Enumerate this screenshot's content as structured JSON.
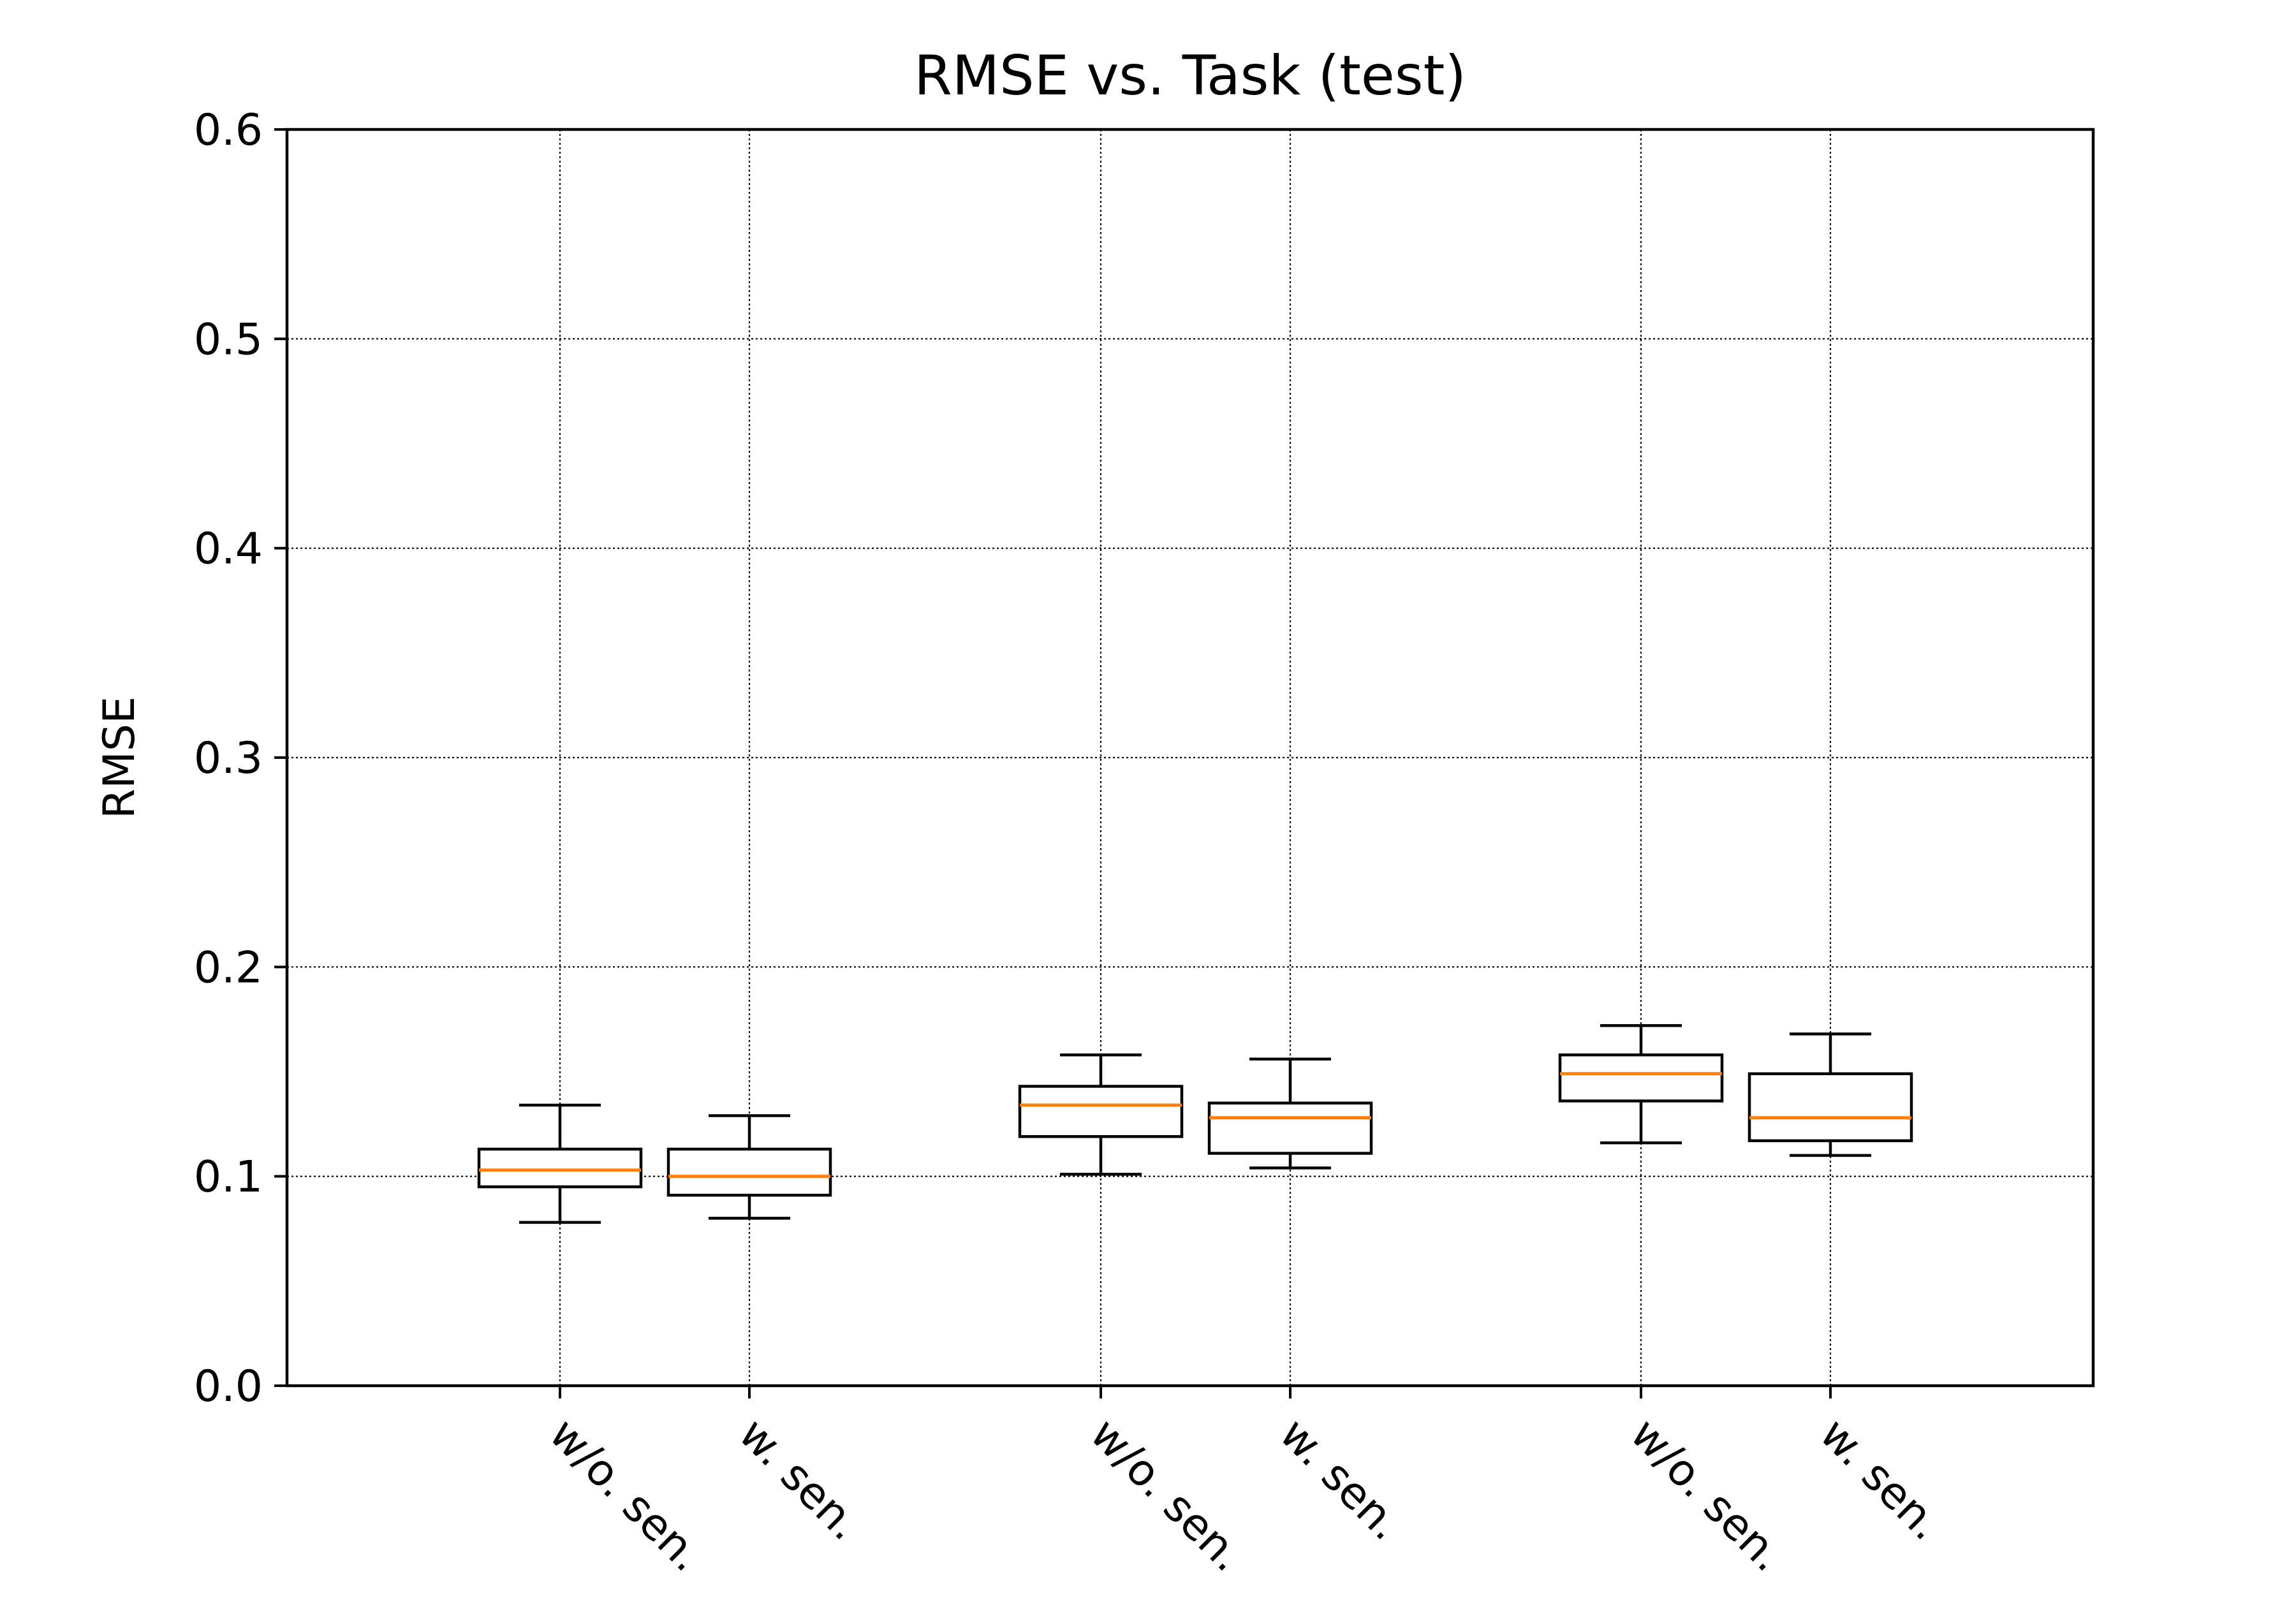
{
  "chart_data": {
    "type": "boxplot",
    "title": "RMSE vs. Task (test)",
    "xlabel": "",
    "ylabel": "RMSE",
    "ylim": [
      0.0,
      0.6
    ],
    "yticks": [
      "0.0",
      "0.1",
      "0.2",
      "0.3",
      "0.4",
      "0.5",
      "0.6"
    ],
    "grid": true,
    "categories": [
      "w/o. sen.",
      "w. sen.",
      "w/o. sen.",
      "w. sen.",
      "w/o. sen.",
      "w. sen."
    ],
    "boxes": [
      {
        "label": "w/o. sen.",
        "whisker_low": 0.078,
        "q1": 0.095,
        "median": 0.103,
        "q3": 0.113,
        "whisker_high": 0.134
      },
      {
        "label": "w. sen.",
        "whisker_low": 0.08,
        "q1": 0.091,
        "median": 0.1,
        "q3": 0.113,
        "whisker_high": 0.129
      },
      {
        "label": "w/o. sen.",
        "whisker_low": 0.101,
        "q1": 0.119,
        "median": 0.134,
        "q3": 0.143,
        "whisker_high": 0.158
      },
      {
        "label": "w. sen.",
        "whisker_low": 0.104,
        "q1": 0.111,
        "median": 0.128,
        "q3": 0.135,
        "whisker_high": 0.156
      },
      {
        "label": "w/o. sen.",
        "whisker_low": 0.116,
        "q1": 0.136,
        "median": 0.149,
        "q3": 0.158,
        "whisker_high": 0.172
      },
      {
        "label": "w. sen.",
        "whisker_low": 0.11,
        "q1": 0.117,
        "median": 0.128,
        "q3": 0.149,
        "whisker_high": 0.168
      }
    ],
    "colors": {
      "box": "#000000",
      "median": "#ff7f0e",
      "grid": "#000000"
    }
  }
}
